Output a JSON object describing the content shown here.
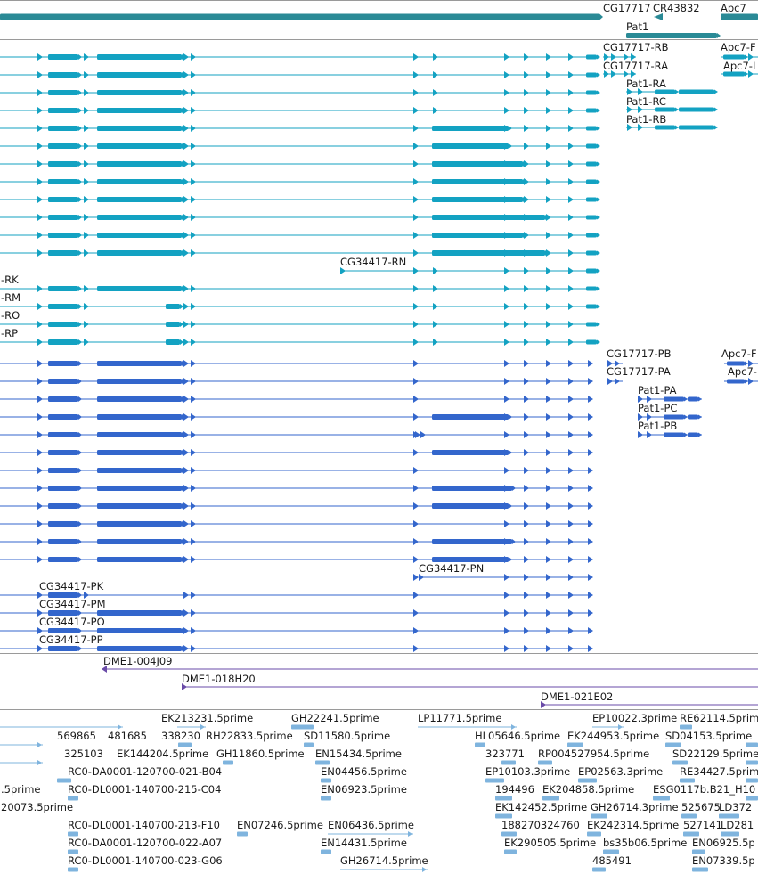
{
  "colors": {
    "gene": "#2a8a96",
    "transcript": "#13a2c2",
    "protein": "#3366cc",
    "clone": "#6a4ba8",
    "est": "#7fb4de",
    "separator": "#9a9a9a"
  },
  "gene_track": {
    "labels": [
      "CG17717",
      "CR43832",
      "Apc7",
      "Pat1"
    ]
  },
  "transcript_track": {
    "labels": [
      "CG17717-RB",
      "CG17717-RA",
      "Apc7-F",
      "Apc7-I",
      "Pat1-RA",
      "Pat1-RC",
      "Pat1-RB",
      "CG34417-RN",
      "-RK",
      "-RM",
      "-RO",
      "-RP"
    ]
  },
  "protein_track": {
    "labels": [
      "CG17717-PB",
      "CG17717-PA",
      "Apc7-F",
      "Apc7-",
      "Pat1-PA",
      "Pat1-PC",
      "Pat1-PB",
      "CG34417-PN",
      "CG34417-PK",
      "CG34417-PM",
      "CG34417-PO",
      "CG34417-PP"
    ]
  },
  "clone_track": {
    "labels": [
      "DME1-004J09",
      "DME1-018H20",
      "DME1-021E02"
    ]
  },
  "est_track": {
    "labels": [
      "EK213231.5prime",
      "GH22241.5prime",
      "LP11771.5prime",
      "EP10022.3prime",
      "RE62114.5prime",
      "569865",
      "481685",
      "338230",
      "RH22833.5prime",
      "SD11580.5prime",
      "HL05646.5prime",
      "EK244953.5prime",
      "SD04153.5prime",
      "325103",
      "EK144204.5prime",
      "GH11860.5prime",
      "EN15434.5prime",
      "323771",
      "RP004527954.5prime",
      "SD22129.5prime",
      "RC0-DA0001-120700-021-B04",
      "EN04456.5prime",
      "EP10103.3prime",
      "EP02563.3prime",
      "RE34427.5prime",
      ".5prime",
      "RC0-DL0001-140700-215-C04",
      "EN06923.5prime",
      "194496",
      "EK204858.5prime",
      "ESG0117b.B21_H10",
      "20073.5prime",
      "EK142452.5prime",
      "GH26714.3prime",
      "525675",
      "LD372",
      "RC0-DL0001-140700-213-F10",
      "EN07246.5prime",
      "EN06436.5prime",
      "188270324760",
      "EK242314.5prime",
      "527141",
      "LD281",
      "RC0-DA0001-120700-022-A07",
      "EN14431.5prime",
      "EK290505.5prime",
      "bs35b06.5prime",
      "EN06925.5p",
      "RC0-DL0001-140700-023-G06",
      "GH26714.5prime",
      "485491",
      "EN07339.5p"
    ]
  }
}
